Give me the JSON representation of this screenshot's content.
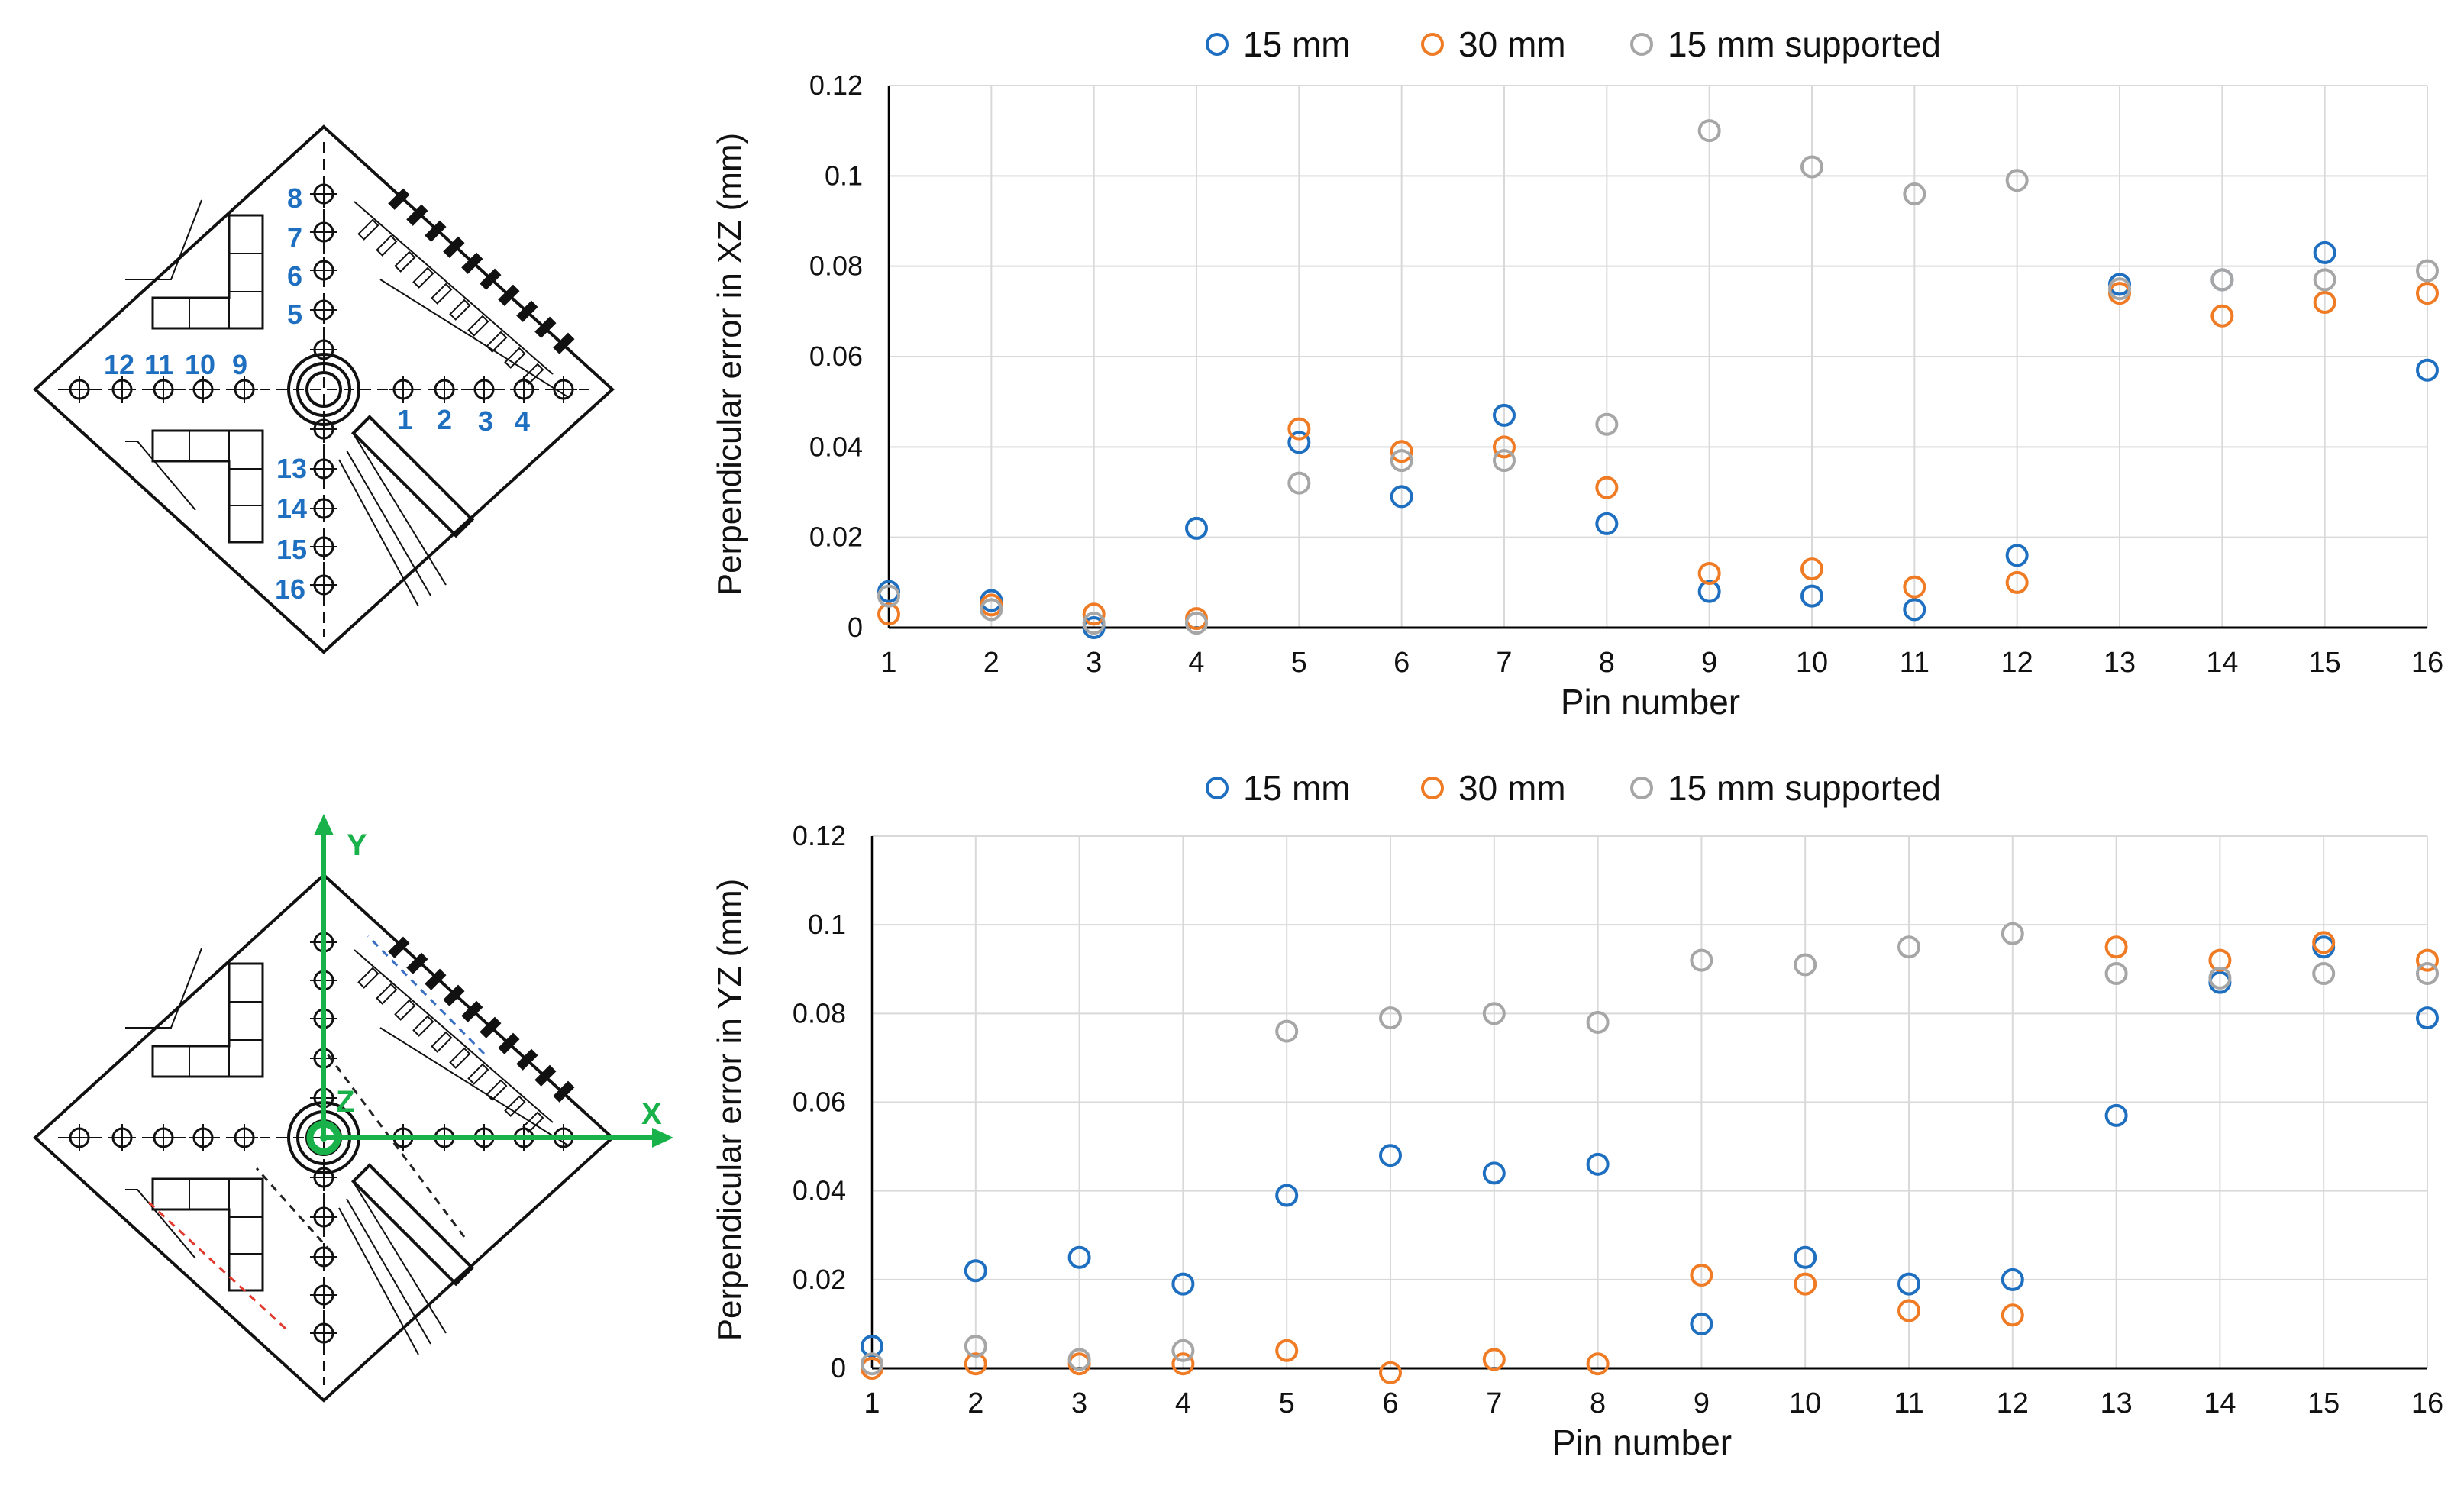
{
  "colors": {
    "series_15mm": "#1f6fc1",
    "series_30mm": "#f07b25",
    "series_15mm_supported": "#a6a6a6",
    "grid": "#d9d9d9",
    "pin_labels": "#1f6fc1",
    "axes_arrows": "#19b24a",
    "diagram_lines": "#111111",
    "dash_blue": "#3a6fc4",
    "dash_red": "#e23a2e"
  },
  "diagram_top": {
    "pin_labels": [
      "1",
      "2",
      "3",
      "4",
      "5",
      "6",
      "7",
      "8",
      "9",
      "10",
      "11",
      "12",
      "13",
      "14",
      "15",
      "16"
    ]
  },
  "diagram_bottom": {
    "axis_x": "X",
    "axis_y": "Y",
    "axis_z": "Z"
  },
  "chart_data": [
    {
      "type": "scatter",
      "title": "",
      "xlabel": "Pin number",
      "ylabel": "Perpendicular error in XZ (mm)",
      "x": [
        1,
        2,
        3,
        4,
        5,
        6,
        7,
        8,
        9,
        10,
        11,
        12,
        13,
        14,
        15,
        16
      ],
      "xlim": [
        1,
        16
      ],
      "ylim": [
        0,
        0.12
      ],
      "yticks": [
        "0",
        "0.02",
        "0.04",
        "0.06",
        "0.08",
        "0.1",
        "0.12"
      ],
      "xticks": [
        "1",
        "2",
        "3",
        "4",
        "5",
        "6",
        "7",
        "8",
        "9",
        "10",
        "11",
        "12",
        "13",
        "14",
        "15",
        "16"
      ],
      "grid": true,
      "legend_position": "top",
      "series": [
        {
          "name": "15 mm",
          "values": [
            0.008,
            0.006,
            0.0,
            0.022,
            0.041,
            0.029,
            0.047,
            0.023,
            0.008,
            0.007,
            0.004,
            0.016,
            0.076,
            0.077,
            0.083,
            0.057
          ]
        },
        {
          "name": "30 mm",
          "values": [
            0.003,
            0.005,
            0.003,
            0.002,
            0.044,
            0.039,
            0.04,
            0.031,
            0.012,
            0.013,
            0.009,
            0.01,
            0.074,
            0.069,
            0.072,
            0.074
          ]
        },
        {
          "name": "15 mm supported",
          "values": [
            0.007,
            0.004,
            0.001,
            0.001,
            0.032,
            0.037,
            0.037,
            0.045,
            0.11,
            0.102,
            0.096,
            0.099,
            0.075,
            0.077,
            0.077,
            0.079
          ]
        }
      ]
    },
    {
      "type": "scatter",
      "title": "",
      "xlabel": "Pin number",
      "ylabel": "Perpendicular error in YZ (mm)",
      "x": [
        1,
        2,
        3,
        4,
        5,
        6,
        7,
        8,
        9,
        10,
        11,
        12,
        13,
        14,
        15,
        16
      ],
      "xlim": [
        1,
        16
      ],
      "ylim": [
        0,
        0.12
      ],
      "yticks": [
        "0",
        "0.02",
        "0.04",
        "0.06",
        "0.08",
        "0.1",
        "0.12"
      ],
      "xticks": [
        "1",
        "2",
        "3",
        "4",
        "5",
        "6",
        "7",
        "8",
        "9",
        "10",
        "11",
        "12",
        "13",
        "14",
        "15",
        "16"
      ],
      "grid": true,
      "legend_position": "top",
      "series": [
        {
          "name": "15 mm",
          "values": [
            0.005,
            0.022,
            0.025,
            0.019,
            0.039,
            0.048,
            0.044,
            0.046,
            0.01,
            0.025,
            0.019,
            0.02,
            0.057,
            0.087,
            0.095,
            0.079
          ]
        },
        {
          "name": "30 mm",
          "values": [
            0.0,
            0.001,
            0.001,
            0.001,
            0.004,
            -0.001,
            0.002,
            0.001,
            0.021,
            0.019,
            0.013,
            0.012,
            0.095,
            0.092,
            0.096,
            0.092
          ]
        },
        {
          "name": "15 mm supported",
          "values": [
            0.001,
            0.005,
            0.002,
            0.004,
            0.076,
            0.079,
            0.08,
            0.078,
            0.092,
            0.091,
            0.095,
            0.098,
            0.089,
            0.088,
            0.089,
            0.089
          ]
        }
      ]
    }
  ]
}
